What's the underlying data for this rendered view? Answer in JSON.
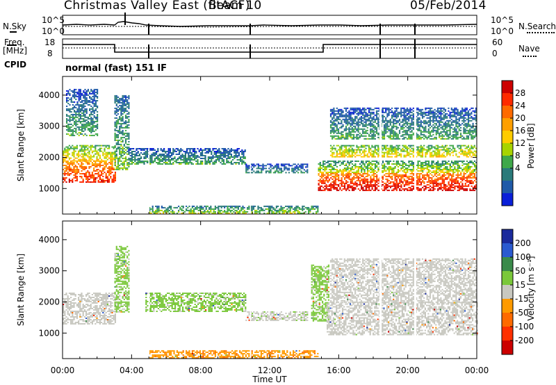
{
  "header": {
    "station": "Christmas Valley East (fitACF)",
    "beam": "Beam 10",
    "date": "05/Feb/2014"
  },
  "top_panels": {
    "nsky_label": "N.Sky",
    "nsearch_label": "N.Search",
    "noise_ticks_left": [
      "10^5",
      "10^0"
    ],
    "noise_ticks_right": [
      "10^5",
      "10^0"
    ],
    "freq_label_1": "Freq.",
    "freq_label_2": "[MHz]",
    "freq_ticks": [
      "18",
      "8"
    ],
    "nave_label": "Nave",
    "nave_ticks": [
      "60",
      "0"
    ],
    "cpid_label": "CPID",
    "cpid_value": "normal (fast) 151 IF"
  },
  "axes": {
    "ylabel": "Slant Range [km]",
    "xlabel": "Time UT",
    "x_ticks": [
      "00:00",
      "04:00",
      "08:00",
      "12:00",
      "16:00",
      "20:00",
      "00:00"
    ],
    "y_ticks": [
      "1000",
      "2000",
      "3000",
      "4000"
    ]
  },
  "colorbars": {
    "power_label": "Power [dB]",
    "power_ticks": [
      "28",
      "24",
      "20",
      "16",
      "12",
      "8",
      "4"
    ],
    "power_colors": [
      "#cc0000",
      "#ff2a00",
      "#ff6a00",
      "#ff9f00",
      "#ffcc00",
      "#a8d400",
      "#3fa84a",
      "#2a7a7a",
      "#1f5aa8",
      "#0a1fd8"
    ],
    "velocity_label": "Velocity [m s⁻¹]",
    "velocity_ticks": [
      "200",
      "100",
      "50",
      "15",
      "-15",
      "-50",
      "-100",
      "-200"
    ],
    "velocity_colors": [
      "#1a2a9c",
      "#2a5ad0",
      "#3a8a4a",
      "#7ac83a",
      "#c8c8c0",
      "#ff9a00",
      "#ff6a00",
      "#ff3000",
      "#cc0000"
    ]
  },
  "chart_data": [
    {
      "type": "heatmap",
      "title": "",
      "xlabel": "",
      "ylabel": "Slant Range [km]",
      "colorbar_label": "Power [dB]",
      "xlim": [
        "00:00",
        "24:00"
      ],
      "ylim": [
        180,
        4600
      ],
      "color_range": [
        0,
        30
      ],
      "series": [
        {
          "start_hr": 0.0,
          "end_hr": 3.1,
          "range_km": [
            1200,
            1900
          ],
          "value": 24
        },
        {
          "start_hr": 0.0,
          "end_hr": 3.1,
          "range_km": [
            1900,
            2400
          ],
          "value": 14
        },
        {
          "start_hr": 0.2,
          "end_hr": 2.0,
          "range_km": [
            2700,
            4200
          ],
          "value": 6
        },
        {
          "start_hr": 3.0,
          "end_hr": 3.8,
          "range_km": [
            1600,
            4000
          ],
          "value": 8
        },
        {
          "start_hr": 3.8,
          "end_hr": 10.6,
          "range_km": [
            1800,
            2300
          ],
          "value": 6
        },
        {
          "start_hr": 10.6,
          "end_hr": 14.2,
          "range_km": [
            1500,
            1800
          ],
          "value": 5
        },
        {
          "start_hr": 5.0,
          "end_hr": 14.8,
          "range_km": [
            200,
            450
          ],
          "value": 10
        },
        {
          "start_hr": 14.8,
          "end_hr": 24.0,
          "range_km": [
            950,
            1500
          ],
          "value": 26
        },
        {
          "start_hr": 14.8,
          "end_hr": 24.0,
          "range_km": [
            1500,
            1900
          ],
          "value": 12
        },
        {
          "start_hr": 15.5,
          "end_hr": 24.0,
          "range_km": [
            2000,
            2400
          ],
          "value": 14
        },
        {
          "start_hr": 15.5,
          "end_hr": 24.0,
          "range_km": [
            2600,
            3600
          ],
          "value": 6
        }
      ]
    },
    {
      "type": "heatmap",
      "title": "",
      "xlabel": "Time UT",
      "ylabel": "Slant Range [km]",
      "colorbar_label": "Velocity [m s⁻¹]",
      "xlim": [
        "00:00",
        "24:00"
      ],
      "ylim": [
        180,
        4600
      ],
      "color_range": [
        -200,
        200
      ],
      "series": [
        {
          "start_hr": 0.0,
          "end_hr": 3.1,
          "range_km": [
            1300,
            2300
          ],
          "value": 0
        },
        {
          "start_hr": 3.0,
          "end_hr": 3.8,
          "range_km": [
            1700,
            3800
          ],
          "value": 40
        },
        {
          "start_hr": 4.8,
          "end_hr": 10.6,
          "range_km": [
            1700,
            2300
          ],
          "value": 40
        },
        {
          "start_hr": 10.6,
          "end_hr": 14.2,
          "range_km": [
            1400,
            1700
          ],
          "value": 10
        },
        {
          "start_hr": 5.0,
          "end_hr": 14.8,
          "range_km": [
            200,
            450
          ],
          "value": -60
        },
        {
          "start_hr": 14.4,
          "end_hr": 15.4,
          "range_km": [
            1400,
            3200
          ],
          "value": 40
        },
        {
          "start_hr": 15.3,
          "end_hr": 24.0,
          "range_km": [
            950,
            2000
          ],
          "value": 0
        },
        {
          "start_hr": 15.5,
          "end_hr": 24.0,
          "range_km": [
            2000,
            3400
          ],
          "value": 5
        }
      ]
    }
  ]
}
